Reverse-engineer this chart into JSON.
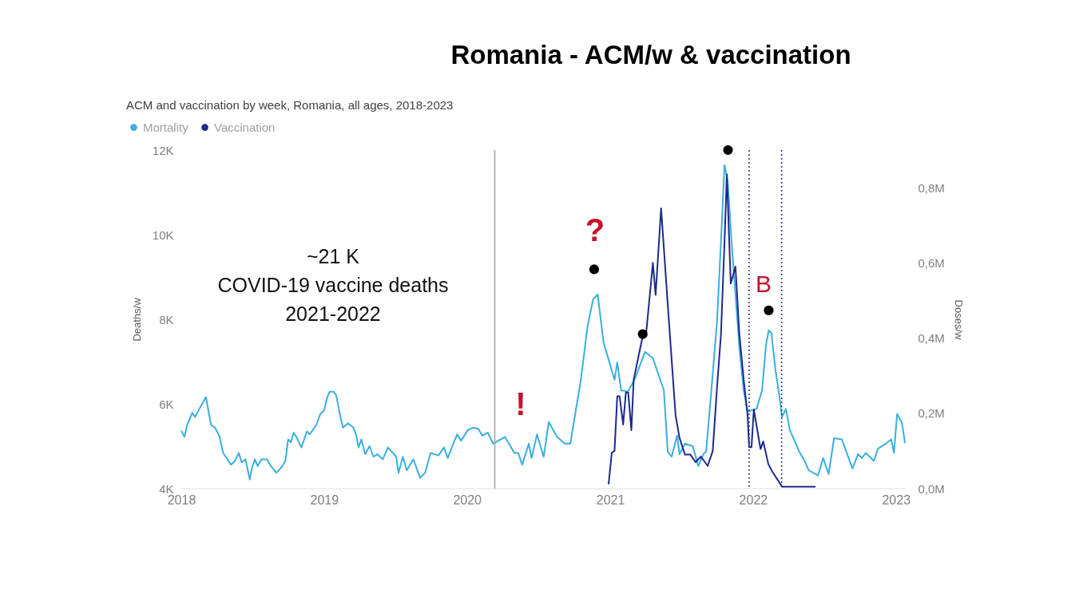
{
  "chart_data": {
    "type": "line",
    "title": "Romania - ACM/w & vaccination",
    "subtitle": "ACM and vaccination by week, Romania, all ages, 2018-2023",
    "ylabel": "Deaths/w",
    "y2label": "Doses/w",
    "annotations": [
      "~21 K\nCOVID-19 vaccine deaths\n2021-2022",
      "?",
      "!",
      "B"
    ],
    "xlim": [
      "2018",
      "2023-01-24"
    ],
    "xticks": [
      "2018",
      "2019",
      "2020",
      "2021",
      "2022",
      "2023"
    ],
    "ylim": [
      4000,
      12000
    ],
    "yticks": [
      {
        "value": 4000,
        "label": "4K"
      },
      {
        "value": 6000,
        "label": "6K"
      },
      {
        "value": 8000,
        "label": "8K"
      },
      {
        "value": 10000,
        "label": "10K"
      },
      {
        "value": 12000,
        "label": "12K"
      }
    ],
    "y2lim": [
      0,
      900000
    ],
    "y2ticks": [
      {
        "value": 0,
        "label": "0,0M"
      },
      {
        "value": 200000,
        "label": "0,2M"
      },
      {
        "value": 400000,
        "label": "0,4M"
      },
      {
        "value": 600000,
        "label": "0,6M"
      },
      {
        "value": 800000,
        "label": "0,8M"
      }
    ],
    "legend": "top left",
    "ref_lines": [
      {
        "axis": "x",
        "value": "2020-03-12",
        "color": "#a6a6a6",
        "line_style": "solid"
      },
      {
        "axis": "x",
        "value": "2021-12-22",
        "color": "#2b3a8c",
        "line_style": "dotted"
      },
      {
        "axis": "x",
        "value": "2022-03-15",
        "color": "#2b3a8c",
        "line_style": "dotted"
      }
    ],
    "series": [
      {
        "name": "Mortality",
        "color": "#3aaee0",
        "x": [
          "2018-01-02",
          "2018-01-09",
          "2018-01-16",
          "2018-01-29",
          "2018-02-05",
          "2018-02-16",
          "2018-03-05",
          "2018-03-18",
          "2018-03-28",
          "2018-04-08",
          "2018-04-18",
          "2018-05-08",
          "2018-05-18",
          "2018-05-28",
          "2018-06-04",
          "2018-06-14",
          "2018-06-25",
          "2018-07-01",
          "2018-07-08",
          "2018-07-15",
          "2018-07-25",
          "2018-08-08",
          "2018-08-18",
          "2018-09-01",
          "2018-09-14",
          "2018-09-24",
          "2018-10-01",
          "2018-10-08",
          "2018-10-15",
          "2018-10-22",
          "2018-11-04",
          "2018-11-18",
          "2018-11-25",
          "2018-12-12",
          "2018-12-22",
          "2019-01-01",
          "2019-01-08",
          "2019-01-15",
          "2019-01-25",
          "2019-02-01",
          "2019-02-11",
          "2019-02-18",
          "2019-03-03",
          "2019-03-17",
          "2019-03-24",
          "2019-03-30",
          "2019-04-06",
          "2019-04-16",
          "2019-04-27",
          "2019-05-07",
          "2019-05-17",
          "2019-05-31",
          "2019-06-13",
          "2019-06-23",
          "2019-07-04",
          "2019-07-10",
          "2019-07-21",
          "2019-07-31",
          "2019-08-17",
          "2019-09-03",
          "2019-09-16",
          "2019-09-30",
          "2019-10-20",
          "2019-11-03",
          "2019-11-13",
          "2019-11-27",
          "2019-12-07",
          "2019-12-17",
          "2020-01-03",
          "2020-01-17",
          "2020-01-30",
          "2020-02-09",
          "2020-02-23",
          "2020-03-08",
          "2020-04-07",
          "2020-05-01",
          "2020-05-11",
          "2020-05-21",
          "2020-06-07",
          "2020-06-14",
          "2020-06-28",
          "2020-07-15",
          "2020-07-28",
          "2020-08-18",
          "2020-09-07",
          "2020-09-21",
          "2020-10-18",
          "2020-11-04",
          "2020-11-18",
          "2020-11-30",
          "2020-12-15",
          "2021-01-12",
          "2021-01-19",
          "2021-01-29",
          "2021-02-15",
          "2021-03-04",
          "2021-03-31",
          "2021-04-20",
          "2021-05-18",
          "2021-05-28",
          "2021-06-07",
          "2021-06-21",
          "2021-06-27",
          "2021-07-11",
          "2021-07-31",
          "2021-08-14",
          "2021-08-27",
          "2021-09-03",
          "2021-09-17",
          "2021-10-01",
          "2021-10-11",
          "2021-10-20",
          "2021-10-28",
          "2021-11-07",
          "2021-11-17",
          "2021-11-27",
          "2021-12-08",
          "2021-12-18",
          "2022-01-10",
          "2022-01-24",
          "2022-02-03",
          "2022-02-10",
          "2022-02-17",
          "2022-02-27",
          "2022-03-09",
          "2022-03-16",
          "2022-03-26",
          "2022-04-05",
          "2022-04-19",
          "2022-04-29",
          "2022-05-13",
          "2022-05-23",
          "2022-06-16",
          "2022-06-29",
          "2022-07-13",
          "2022-07-27",
          "2022-08-16",
          "2022-09-12",
          "2022-09-26",
          "2022-10-06",
          "2022-10-16",
          "2022-11-06",
          "2022-11-16",
          "2022-12-06",
          "2022-12-20",
          "2022-12-27",
          "2023-01-04",
          "2023-01-16",
          "2023-01-24"
        ],
        "values": [
          5350,
          5220,
          5500,
          5790,
          5690,
          5880,
          6160,
          5500,
          5440,
          5250,
          4840,
          4560,
          4650,
          4840,
          4620,
          4690,
          4210,
          4500,
          4690,
          4530,
          4690,
          4690,
          4530,
          4370,
          4500,
          4650,
          5160,
          5090,
          5320,
          5220,
          4970,
          5350,
          5280,
          5500,
          5760,
          5850,
          6130,
          6290,
          6290,
          6200,
          5720,
          5440,
          5540,
          5440,
          5250,
          4970,
          5160,
          4810,
          5000,
          4750,
          4810,
          4690,
          4970,
          4870,
          4750,
          4370,
          4750,
          4430,
          4690,
          4250,
          4370,
          4840,
          4780,
          4970,
          4720,
          5060,
          5280,
          5130,
          5380,
          5440,
          5410,
          5250,
          5320,
          5060,
          5220,
          4840,
          4840,
          4560,
          5060,
          4720,
          5280,
          4750,
          5570,
          5220,
          5060,
          5060,
          6570,
          7830,
          8460,
          8590,
          7450,
          6570,
          6980,
          6320,
          6290,
          6570,
          7230,
          7080,
          6320,
          4870,
          4750,
          5250,
          4810,
          5060,
          5000,
          4530,
          4810,
          4870,
          6380,
          7960,
          9840,
          11640,
          11290,
          9840,
          8590,
          7330,
          6320,
          5820,
          5880,
          6320,
          7390,
          7740,
          7670,
          6820,
          6200,
          5690,
          5880,
          5380,
          5090,
          4870,
          4650,
          4430,
          4310,
          4720,
          4340,
          5190,
          5160,
          4470,
          4810,
          4720,
          4840,
          4650,
          4940,
          5060,
          5160,
          4840,
          5760,
          5570,
          5090
        ]
      },
      {
        "name": "Vaccination",
        "color": "#1c2a8c",
        "axis": "y2",
        "x": [
          "2020-12-28",
          "2021-01-05",
          "2021-01-12",
          "2021-01-19",
          "2021-01-25",
          "2021-02-03",
          "2021-02-10",
          "2021-02-16",
          "2021-02-24",
          "2021-03-02",
          "2021-03-24",
          "2021-04-03",
          "2021-04-20",
          "2021-04-27",
          "2021-05-11",
          "2021-05-31",
          "2021-06-17",
          "2021-06-27",
          "2021-07-11",
          "2021-07-25",
          "2021-08-07",
          "2021-08-21",
          "2021-09-07",
          "2021-09-20",
          "2021-10-01",
          "2021-10-11",
          "2021-10-20",
          "2021-10-26",
          "2021-11-05",
          "2021-11-17",
          "2021-11-27",
          "2021-12-08",
          "2021-12-18",
          "2021-12-22",
          "2021-12-28",
          "2022-01-03",
          "2022-01-20",
          "2022-01-27",
          "2022-02-09",
          "2022-02-19",
          "2022-03-16",
          "2022-06-08"
        ],
        "values": [
          13000,
          95000,
          100000,
          245000,
          245000,
          170000,
          255000,
          255000,
          155000,
          290000,
          400000,
          415000,
          600000,
          515000,
          745000,
          445000,
          195000,
          135000,
          90000,
          90000,
          70000,
          85000,
          60000,
          100000,
          270000,
          410000,
          655000,
          835000,
          545000,
          590000,
          410000,
          290000,
          195000,
          110000,
          110000,
          210000,
          105000,
          125000,
          65000,
          45000,
          5000,
          5000
        ]
      },
      {
        "type": "scatter",
        "color": "#000000",
        "x": [
          "2020-11-21",
          "2021-03-25",
          "2021-10-29",
          "2022-02-10"
        ],
        "values": [
          9180,
          7650,
          12000,
          8210
        ]
      }
    ]
  }
}
